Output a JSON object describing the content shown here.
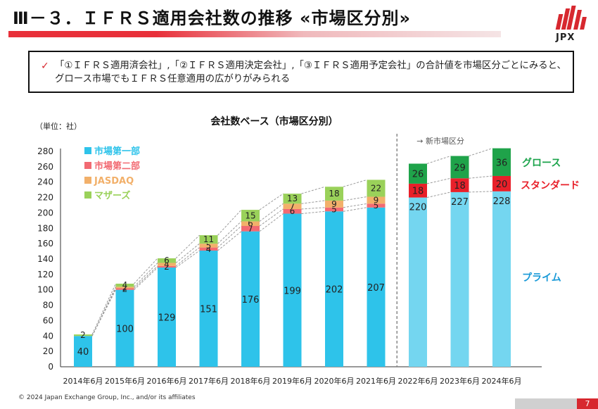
{
  "header": {
    "title": "Ⅲ－３．ＩＦＲＳ適用会社数の推移 «市場区分別»",
    "logo_text": "JPX"
  },
  "note": {
    "text": "「①ＩＦＲＳ適用済会社」,「②ＩＦＲＳ適用決定会社」,「③ＩＦＲＳ適用予定会社」の合計値を市場区分ごとにみると、グロース市場でもＩＦＲＳ任意適用の広がりがみられる"
  },
  "footer": {
    "copyright": "© 2024 Japan Exchange Group, Inc., and/or its affiliates",
    "page_number": "7"
  },
  "colors": {
    "cyan_old": "#2ec3ea",
    "cyan_new": "#74d6f0",
    "red": "#f26a72",
    "red_new": "#e8202a",
    "orange": "#f2b06a",
    "green": "#9ad15a",
    "green_new": "#1fa34a",
    "label_green": "#1aa34a",
    "label_red": "#e8202a",
    "label_blue": "#1a9ad8"
  },
  "chart_data": {
    "type": "bar",
    "stacked": true,
    "title": "会社数ベース（市場区分別）",
    "unit_label": "（単位：社）",
    "new_market_label": "→ 新市場区分",
    "ylim": [
      0,
      280
    ],
    "yticks": [
      0,
      20,
      40,
      60,
      80,
      100,
      120,
      140,
      160,
      180,
      200,
      220,
      240,
      260,
      280
    ],
    "categories": [
      "2014年6月",
      "2015年6月",
      "2016年6月",
      "2017年6月",
      "2018年6月",
      "2019年6月",
      "2020年6月",
      "2021年6月",
      "2022年6月",
      "2023年6月",
      "2024年6月"
    ],
    "old_market": {
      "series": [
        {
          "name": "市場第一部",
          "values": [
            40,
            100,
            129,
            151,
            176,
            199,
            202,
            207
          ]
        },
        {
          "name": "市場第二部",
          "values": [
            0,
            2,
            2,
            4,
            7,
            6,
            5,
            5
          ]
        },
        {
          "name": "JASDAQ",
          "values": [
            0,
            2,
            4,
            5,
            6,
            7,
            9,
            9
          ]
        },
        {
          "name": "マザーズ",
          "values": [
            2,
            4,
            6,
            11,
            15,
            13,
            18,
            22
          ]
        }
      ]
    },
    "new_market": {
      "series": [
        {
          "name": "プライム",
          "values": [
            220,
            227,
            228
          ]
        },
        {
          "name": "スタンダード",
          "values": [
            18,
            18,
            20
          ]
        },
        {
          "name": "グロース",
          "values": [
            26,
            29,
            36
          ]
        }
      ]
    },
    "data_labels": {
      "old": [
        [
          "40",
          "",
          "",
          "2"
        ],
        [
          "100",
          "2",
          "2",
          "4"
        ],
        [
          "129",
          "2",
          "4",
          "6"
        ],
        [
          "151",
          "4",
          "5",
          "11"
        ],
        [
          "176",
          "7",
          "6",
          "15"
        ],
        [
          "199",
          "6",
          "7",
          "13"
        ],
        [
          "202",
          "5",
          "9",
          "18"
        ],
        [
          "207",
          "5",
          "9",
          "22"
        ]
      ],
      "new": [
        [
          "220",
          "18",
          "26"
        ],
        [
          "227",
          "18",
          "29"
        ],
        [
          "228",
          "20",
          "36"
        ]
      ]
    }
  }
}
